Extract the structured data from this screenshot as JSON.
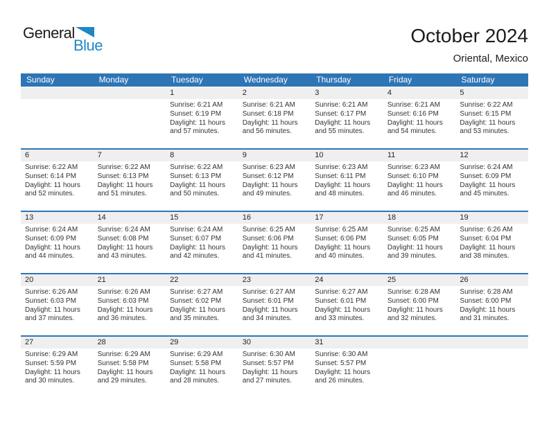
{
  "logo": {
    "general": "General",
    "blue": "Blue"
  },
  "header": {
    "title": "October 2024",
    "subtitle": "Oriental, Mexico"
  },
  "colors": {
    "header_blue": "#2E75B6",
    "logo_blue": "#1E87C8",
    "strip_gray": "#EFEFEF"
  },
  "weekdays": [
    "Sunday",
    "Monday",
    "Tuesday",
    "Wednesday",
    "Thursday",
    "Friday",
    "Saturday"
  ],
  "weeks": [
    [
      null,
      null,
      {
        "day": "1",
        "lines": [
          "Sunrise: 6:21 AM",
          "Sunset: 6:19 PM",
          "Daylight: 11 hours",
          "and 57 minutes."
        ]
      },
      {
        "day": "2",
        "lines": [
          "Sunrise: 6:21 AM",
          "Sunset: 6:18 PM",
          "Daylight: 11 hours",
          "and 56 minutes."
        ]
      },
      {
        "day": "3",
        "lines": [
          "Sunrise: 6:21 AM",
          "Sunset: 6:17 PM",
          "Daylight: 11 hours",
          "and 55 minutes."
        ]
      },
      {
        "day": "4",
        "lines": [
          "Sunrise: 6:21 AM",
          "Sunset: 6:16 PM",
          "Daylight: 11 hours",
          "and 54 minutes."
        ]
      },
      {
        "day": "5",
        "lines": [
          "Sunrise: 6:22 AM",
          "Sunset: 6:15 PM",
          "Daylight: 11 hours",
          "and 53 minutes."
        ]
      }
    ],
    [
      {
        "day": "6",
        "lines": [
          "Sunrise: 6:22 AM",
          "Sunset: 6:14 PM",
          "Daylight: 11 hours",
          "and 52 minutes."
        ]
      },
      {
        "day": "7",
        "lines": [
          "Sunrise: 6:22 AM",
          "Sunset: 6:13 PM",
          "Daylight: 11 hours",
          "and 51 minutes."
        ]
      },
      {
        "day": "8",
        "lines": [
          "Sunrise: 6:22 AM",
          "Sunset: 6:13 PM",
          "Daylight: 11 hours",
          "and 50 minutes."
        ]
      },
      {
        "day": "9",
        "lines": [
          "Sunrise: 6:23 AM",
          "Sunset: 6:12 PM",
          "Daylight: 11 hours",
          "and 49 minutes."
        ]
      },
      {
        "day": "10",
        "lines": [
          "Sunrise: 6:23 AM",
          "Sunset: 6:11 PM",
          "Daylight: 11 hours",
          "and 48 minutes."
        ]
      },
      {
        "day": "11",
        "lines": [
          "Sunrise: 6:23 AM",
          "Sunset: 6:10 PM",
          "Daylight: 11 hours",
          "and 46 minutes."
        ]
      },
      {
        "day": "12",
        "lines": [
          "Sunrise: 6:24 AM",
          "Sunset: 6:09 PM",
          "Daylight: 11 hours",
          "and 45 minutes."
        ]
      }
    ],
    [
      {
        "day": "13",
        "lines": [
          "Sunrise: 6:24 AM",
          "Sunset: 6:09 PM",
          "Daylight: 11 hours",
          "and 44 minutes."
        ]
      },
      {
        "day": "14",
        "lines": [
          "Sunrise: 6:24 AM",
          "Sunset: 6:08 PM",
          "Daylight: 11 hours",
          "and 43 minutes."
        ]
      },
      {
        "day": "15",
        "lines": [
          "Sunrise: 6:24 AM",
          "Sunset: 6:07 PM",
          "Daylight: 11 hours",
          "and 42 minutes."
        ]
      },
      {
        "day": "16",
        "lines": [
          "Sunrise: 6:25 AM",
          "Sunset: 6:06 PM",
          "Daylight: 11 hours",
          "and 41 minutes."
        ]
      },
      {
        "day": "17",
        "lines": [
          "Sunrise: 6:25 AM",
          "Sunset: 6:06 PM",
          "Daylight: 11 hours",
          "and 40 minutes."
        ]
      },
      {
        "day": "18",
        "lines": [
          "Sunrise: 6:25 AM",
          "Sunset: 6:05 PM",
          "Daylight: 11 hours",
          "and 39 minutes."
        ]
      },
      {
        "day": "19",
        "lines": [
          "Sunrise: 6:26 AM",
          "Sunset: 6:04 PM",
          "Daylight: 11 hours",
          "and 38 minutes."
        ]
      }
    ],
    [
      {
        "day": "20",
        "lines": [
          "Sunrise: 6:26 AM",
          "Sunset: 6:03 PM",
          "Daylight: 11 hours",
          "and 37 minutes."
        ]
      },
      {
        "day": "21",
        "lines": [
          "Sunrise: 6:26 AM",
          "Sunset: 6:03 PM",
          "Daylight: 11 hours",
          "and 36 minutes."
        ]
      },
      {
        "day": "22",
        "lines": [
          "Sunrise: 6:27 AM",
          "Sunset: 6:02 PM",
          "Daylight: 11 hours",
          "and 35 minutes."
        ]
      },
      {
        "day": "23",
        "lines": [
          "Sunrise: 6:27 AM",
          "Sunset: 6:01 PM",
          "Daylight: 11 hours",
          "and 34 minutes."
        ]
      },
      {
        "day": "24",
        "lines": [
          "Sunrise: 6:27 AM",
          "Sunset: 6:01 PM",
          "Daylight: 11 hours",
          "and 33 minutes."
        ]
      },
      {
        "day": "25",
        "lines": [
          "Sunrise: 6:28 AM",
          "Sunset: 6:00 PM",
          "Daylight: 11 hours",
          "and 32 minutes."
        ]
      },
      {
        "day": "26",
        "lines": [
          "Sunrise: 6:28 AM",
          "Sunset: 6:00 PM",
          "Daylight: 11 hours",
          "and 31 minutes."
        ]
      }
    ],
    [
      {
        "day": "27",
        "lines": [
          "Sunrise: 6:29 AM",
          "Sunset: 5:59 PM",
          "Daylight: 11 hours",
          "and 30 minutes."
        ]
      },
      {
        "day": "28",
        "lines": [
          "Sunrise: 6:29 AM",
          "Sunset: 5:58 PM",
          "Daylight: 11 hours",
          "and 29 minutes."
        ]
      },
      {
        "day": "29",
        "lines": [
          "Sunrise: 6:29 AM",
          "Sunset: 5:58 PM",
          "Daylight: 11 hours",
          "and 28 minutes."
        ]
      },
      {
        "day": "30",
        "lines": [
          "Sunrise: 6:30 AM",
          "Sunset: 5:57 PM",
          "Daylight: 11 hours",
          "and 27 minutes."
        ]
      },
      {
        "day": "31",
        "lines": [
          "Sunrise: 6:30 AM",
          "Sunset: 5:57 PM",
          "Daylight: 11 hours",
          "and 26 minutes."
        ]
      },
      null,
      null
    ]
  ]
}
